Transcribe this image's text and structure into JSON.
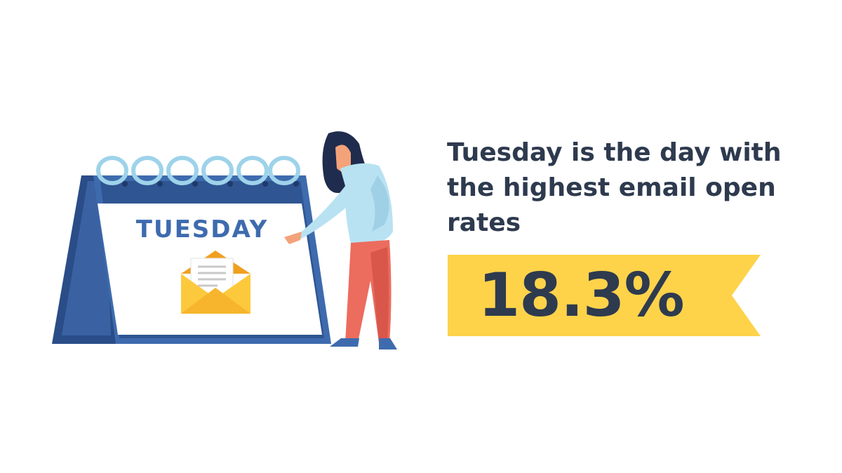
{
  "headline": "Tuesday is the day with the highest email open rates",
  "stat": "18.3%",
  "calendar_day": "TUESDAY",
  "colors": {
    "text_dark": "#2e3a4e",
    "ribbon_yellow": "#fed34a",
    "calendar_blue": "#3e6bae",
    "calendar_dark": "#2a4d88",
    "ring_light_blue": "#9ed3ea",
    "envelope_orange": "#f6b52c",
    "shirt": "#b8e2f2",
    "pants": "#ec6c5e"
  },
  "icons": [
    "desk-calendar-icon",
    "envelope-icon",
    "woman-figure-icon",
    "ribbon-banner-icon"
  ]
}
